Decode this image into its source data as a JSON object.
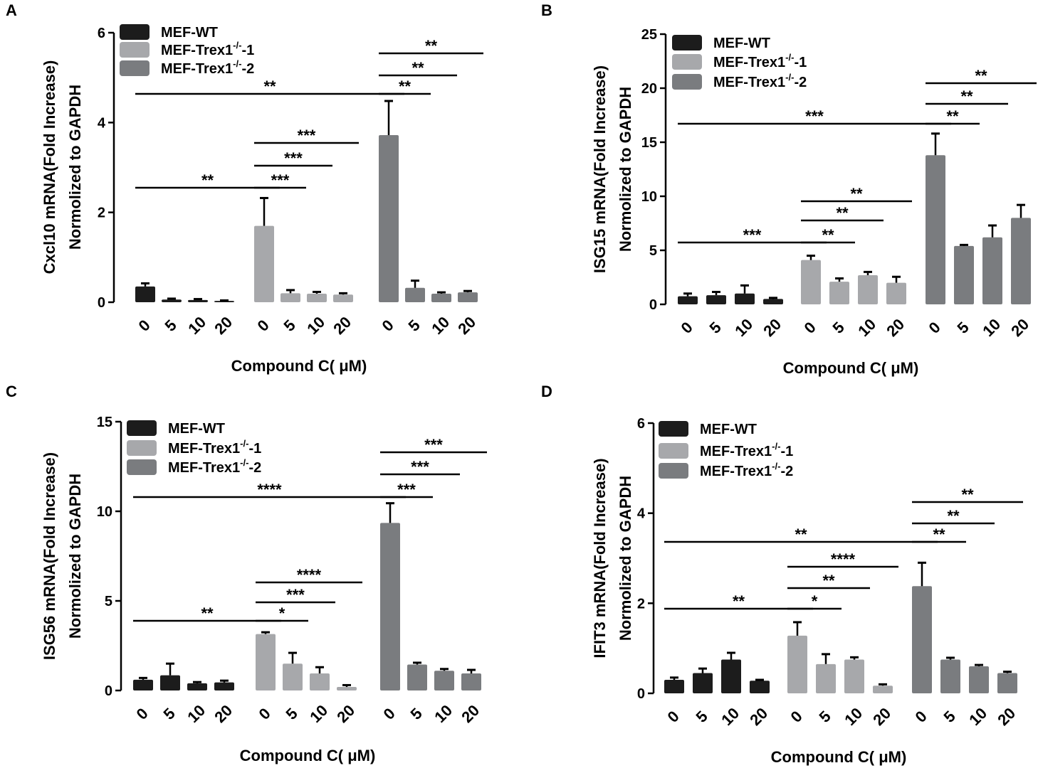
{
  "chart_data": [
    {
      "type": "bar",
      "panel": "A",
      "ylabel_line1": "Cxcl10 mRNA(Fold Increase)",
      "ylabel_line2": "Normolized to GAPDH",
      "xlabel": "Compound C( μM)",
      "ylim": [
        0,
        6
      ],
      "yticks": [
        "0",
        "2",
        "4",
        "6"
      ],
      "categories": [
        "0",
        "5",
        "10",
        "20"
      ],
      "legend": [
        "MEF-WT",
        "MEF-Trex1",
        "-/-",
        "-1",
        "MEF-Trex1",
        "-/-",
        "-2"
      ],
      "series": [
        {
          "name": "MEF-WT",
          "values": [
            0.35,
            0.06,
            0.05,
            0.03
          ],
          "errors": [
            0.07,
            0.02,
            0.02,
            0.01
          ]
        },
        {
          "name": "MEF-Trex1-/--1",
          "values": [
            1.7,
            0.2,
            0.19,
            0.17
          ],
          "errors": [
            0.62,
            0.07,
            0.04,
            0.03
          ]
        },
        {
          "name": "MEF-Trex1-/--2",
          "values": [
            3.72,
            0.32,
            0.19,
            0.22
          ],
          "errors": [
            0.76,
            0.16,
            0.03,
            0.03
          ]
        }
      ],
      "significance": [
        {
          "from": [
            0,
            0
          ],
          "to": [
            1,
            0
          ],
          "label": "**"
        },
        {
          "from": [
            1,
            0
          ],
          "to": [
            1,
            1
          ],
          "label": "***"
        },
        {
          "from": [
            1,
            0
          ],
          "to": [
            1,
            2
          ],
          "label": "***"
        },
        {
          "from": [
            1,
            0
          ],
          "to": [
            1,
            3
          ],
          "label": "***"
        },
        {
          "from": [
            0,
            0
          ],
          "to": [
            2,
            0
          ],
          "label": "**"
        },
        {
          "from": [
            2,
            0
          ],
          "to": [
            2,
            1
          ],
          "label": "**"
        },
        {
          "from": [
            2,
            0
          ],
          "to": [
            2,
            2
          ],
          "label": "**"
        },
        {
          "from": [
            2,
            0
          ],
          "to": [
            2,
            3
          ],
          "label": "**"
        }
      ]
    },
    {
      "type": "bar",
      "panel": "B",
      "ylabel_line1": "ISG15 mRNA(Fold Increase)",
      "ylabel_line2": "Normolized to GAPDH",
      "xlabel": "Compound C( μM)",
      "ylim": [
        0,
        25
      ],
      "yticks": [
        "0",
        "5",
        "10",
        "15",
        "20",
        "25"
      ],
      "categories": [
        "0",
        "5",
        "10",
        "20"
      ],
      "legend": [
        "MEF-WT",
        "MEF-Trex1",
        "-/-",
        "-1",
        "MEF-Trex1",
        "-/-",
        "-2"
      ],
      "series": [
        {
          "name": "MEF-WT",
          "values": [
            0.75,
            0.85,
            1.0,
            0.5
          ],
          "errors": [
            0.25,
            0.3,
            0.75,
            0.1
          ]
        },
        {
          "name": "MEF-Trex1-/--1",
          "values": [
            4.1,
            2.1,
            2.7,
            2.0
          ],
          "errors": [
            0.4,
            0.3,
            0.3,
            0.55
          ]
        },
        {
          "name": "MEF-Trex1-/--2",
          "values": [
            13.8,
            5.4,
            6.2,
            8.0
          ],
          "errors": [
            2.0,
            0.1,
            1.1,
            1.2
          ]
        }
      ],
      "significance": [
        {
          "from": [
            0,
            0
          ],
          "to": [
            1,
            0
          ],
          "label": "***"
        },
        {
          "from": [
            1,
            0
          ],
          "to": [
            1,
            1
          ],
          "label": "**"
        },
        {
          "from": [
            1,
            0
          ],
          "to": [
            1,
            2
          ],
          "label": "**"
        },
        {
          "from": [
            1,
            0
          ],
          "to": [
            1,
            3
          ],
          "label": "**"
        },
        {
          "from": [
            0,
            0
          ],
          "to": [
            2,
            0
          ],
          "label": "***"
        },
        {
          "from": [
            2,
            0
          ],
          "to": [
            2,
            1
          ],
          "label": "**"
        },
        {
          "from": [
            2,
            0
          ],
          "to": [
            2,
            2
          ],
          "label": "**"
        },
        {
          "from": [
            2,
            0
          ],
          "to": [
            2,
            3
          ],
          "label": "**"
        }
      ]
    },
    {
      "type": "bar",
      "panel": "C",
      "ylabel_line1": "ISG56 mRNA(Fold Increase)",
      "ylabel_line2": "Normolized to GAPDH",
      "xlabel": "Compound C( μM)",
      "ylim": [
        0,
        15
      ],
      "yticks": [
        "0",
        "5",
        "10",
        "15"
      ],
      "categories": [
        "0",
        "5",
        "10",
        "20"
      ],
      "legend": [
        "MEF-WT",
        "MEF-Trex1",
        "-/-",
        "-1",
        "MEF-Trex1",
        "-/-",
        "-2"
      ],
      "series": [
        {
          "name": "MEF-WT",
          "values": [
            0.6,
            0.85,
            0.4,
            0.45
          ],
          "errors": [
            0.1,
            0.65,
            0.07,
            0.1
          ]
        },
        {
          "name": "MEF-Trex1-/--1",
          "values": [
            3.15,
            1.5,
            0.95,
            0.2
          ],
          "errors": [
            0.1,
            0.6,
            0.35,
            0.1
          ]
        },
        {
          "name": "MEF-Trex1-/--2",
          "values": [
            9.35,
            1.45,
            1.1,
            0.95
          ],
          "errors": [
            1.1,
            0.1,
            0.1,
            0.2
          ]
        }
      ],
      "significance": [
        {
          "from": [
            0,
            0
          ],
          "to": [
            1,
            0
          ],
          "label": "**"
        },
        {
          "from": [
            1,
            0
          ],
          "to": [
            1,
            1
          ],
          "label": "*"
        },
        {
          "from": [
            1,
            0
          ],
          "to": [
            1,
            2
          ],
          "label": "***"
        },
        {
          "from": [
            1,
            0
          ],
          "to": [
            1,
            3
          ],
          "label": "****"
        },
        {
          "from": [
            0,
            0
          ],
          "to": [
            2,
            0
          ],
          "label": "****"
        },
        {
          "from": [
            2,
            0
          ],
          "to": [
            2,
            1
          ],
          "label": "***"
        },
        {
          "from": [
            2,
            0
          ],
          "to": [
            2,
            2
          ],
          "label": "***"
        },
        {
          "from": [
            2,
            0
          ],
          "to": [
            2,
            3
          ],
          "label": "***"
        }
      ]
    },
    {
      "type": "bar",
      "panel": "D",
      "ylabel_line1": "IFIT3 mRNA(Fold Increase)",
      "ylabel_line2": "Normolized to GAPDH",
      "xlabel": "Compound C( μM)",
      "ylim": [
        0,
        6
      ],
      "yticks": [
        "0",
        "2",
        "4",
        "6"
      ],
      "categories": [
        "0",
        "5",
        "10",
        "20"
      ],
      "legend": [
        "MEF-WT",
        "MEF-Trex1",
        "-/-",
        "-1",
        "MEF-Trex1",
        "-/-",
        "-2"
      ],
      "series": [
        {
          "name": "MEF-WT",
          "values": [
            0.3,
            0.45,
            0.75,
            0.28
          ],
          "errors": [
            0.05,
            0.1,
            0.15,
            0.02
          ]
        },
        {
          "name": "MEF-Trex1-/--1",
          "values": [
            1.28,
            0.65,
            0.75,
            0.17
          ],
          "errors": [
            0.3,
            0.22,
            0.05,
            0.03
          ]
        },
        {
          "name": "MEF-Trex1-/--2",
          "values": [
            2.38,
            0.75,
            0.6,
            0.45
          ],
          "errors": [
            0.52,
            0.04,
            0.03,
            0.03
          ]
        }
      ],
      "significance": [
        {
          "from": [
            0,
            0
          ],
          "to": [
            1,
            0
          ],
          "label": "**"
        },
        {
          "from": [
            1,
            0
          ],
          "to": [
            1,
            1
          ],
          "label": "*"
        },
        {
          "from": [
            1,
            0
          ],
          "to": [
            1,
            2
          ],
          "label": "**"
        },
        {
          "from": [
            1,
            0
          ],
          "to": [
            1,
            3
          ],
          "label": "****"
        },
        {
          "from": [
            0,
            0
          ],
          "to": [
            2,
            0
          ],
          "label": "**"
        },
        {
          "from": [
            2,
            0
          ],
          "to": [
            2,
            1
          ],
          "label": "**"
        },
        {
          "from": [
            2,
            0
          ],
          "to": [
            2,
            2
          ],
          "label": "**"
        },
        {
          "from": [
            2,
            0
          ],
          "to": [
            2,
            3
          ],
          "label": "**"
        }
      ]
    }
  ],
  "colors": {
    "series": [
      "#1c1c1c",
      "#a7a8ab",
      "#7a7c7f"
    ],
    "axis": "#000000"
  }
}
